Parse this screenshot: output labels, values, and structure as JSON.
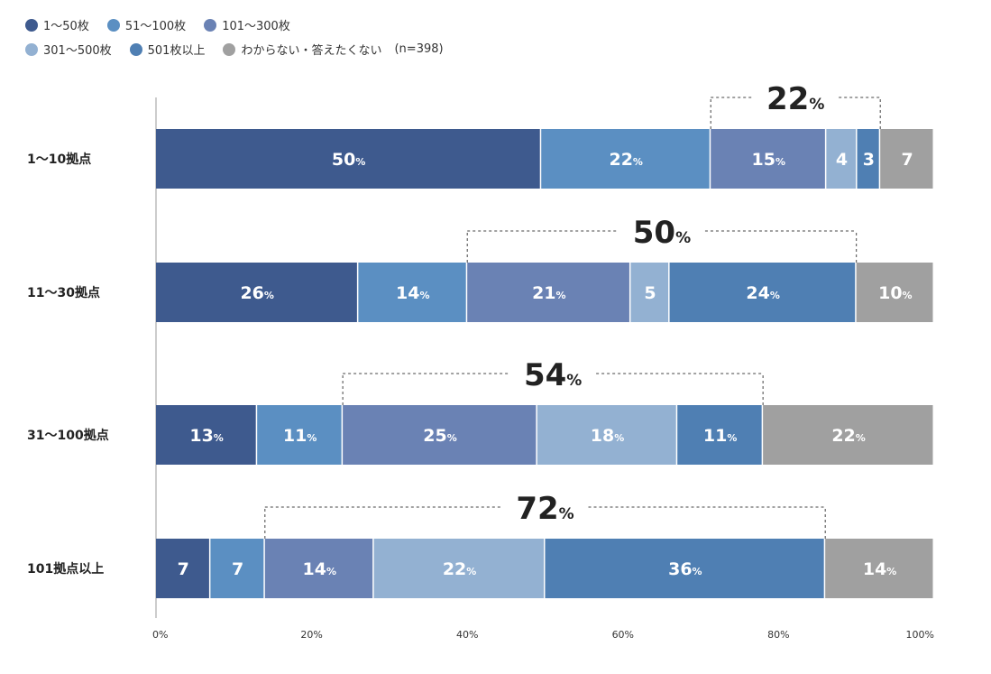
{
  "chart_data": {
    "type": "bar",
    "orientation": "horizontal",
    "stacked": true,
    "percent_suffix": "%",
    "note": "(n=398)",
    "categories": [
      "1〜10拠点",
      "11〜30拠点",
      "31〜100拠点",
      "101拠点以上"
    ],
    "series": [
      {
        "name": "1〜50枚",
        "color": "#3e5a8e",
        "values": [
          50,
          26,
          13,
          7
        ],
        "labels": [
          "50%",
          "26%",
          "13%",
          "7"
        ]
      },
      {
        "name": "51〜100枚",
        "color": "#5b8fc2",
        "values": [
          22,
          14,
          11,
          7
        ],
        "labels": [
          "22%",
          "14%",
          "11%",
          "7"
        ]
      },
      {
        "name": "101〜300枚",
        "color": "#6a82b4",
        "values": [
          15,
          21,
          25,
          14
        ],
        "labels": [
          "15%",
          "21%",
          "25%",
          "14%"
        ]
      },
      {
        "name": "301〜500枚",
        "color": "#93b1d2",
        "values": [
          4,
          5,
          18,
          22
        ],
        "labels": [
          "4",
          "5",
          "18%",
          "22%"
        ]
      },
      {
        "name": "501枚以上",
        "color": "#4f7fb3",
        "values": [
          3,
          24,
          11,
          36
        ],
        "labels": [
          "3",
          "24%",
          "11%",
          "36%"
        ]
      },
      {
        "name": "わからない・答えたくない",
        "color": "#a0a0a0",
        "values": [
          7,
          10,
          22,
          14
        ],
        "labels": [
          "7",
          "10%",
          "22%",
          "14%"
        ]
      }
    ],
    "brackets": [
      {
        "category": "1〜10拠点",
        "from_series": 2,
        "to_series": 4,
        "value": "22"
      },
      {
        "category": "11〜30拠点",
        "from_series": 2,
        "to_series": 4,
        "value": "50"
      },
      {
        "category": "31〜100拠点",
        "from_series": 2,
        "to_series": 4,
        "value": "54"
      },
      {
        "category": "101拠点以上",
        "from_series": 2,
        "to_series": 4,
        "value": "72"
      }
    ],
    "xlim": [
      0,
      100
    ],
    "xticks": [
      "0%",
      "20%",
      "40%",
      "60%",
      "80%",
      "100%"
    ],
    "title": "",
    "xlabel": "",
    "ylabel": ""
  }
}
